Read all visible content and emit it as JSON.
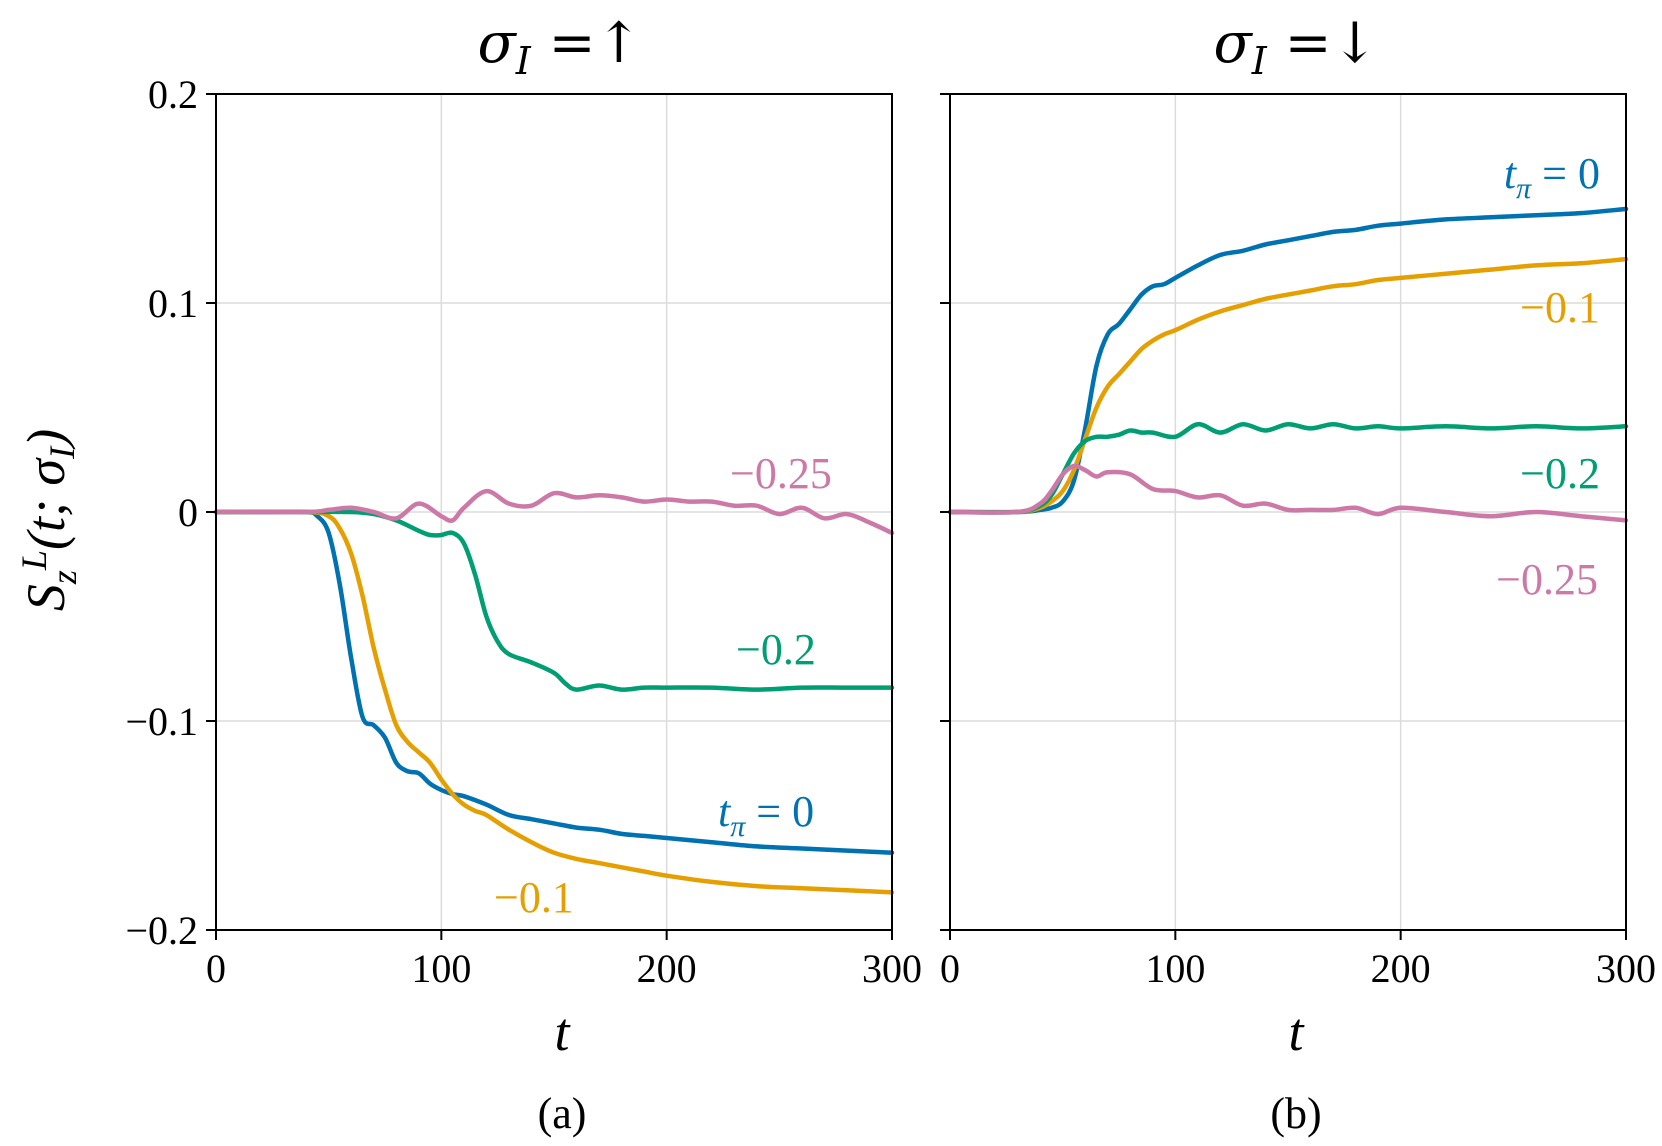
{
  "chart_data": [
    {
      "type": "line",
      "panel": "(a)",
      "title": "σ_I =↑",
      "xlabel": "t",
      "ylabel": "S_z^L(t; σ_I)",
      "xlim": [
        0,
        300
      ],
      "ylim": [
        -0.2,
        0.2
      ],
      "xticks": [
        "0",
        "100",
        "200",
        "300"
      ],
      "yticks": [
        "0.2",
        "0.1",
        "0",
        "−0.1",
        "−0.2"
      ],
      "grid": true,
      "series": [
        {
          "name": "t_π = 0",
          "label": "t",
          "label_sub": "π",
          "label_rest": " = 0",
          "color": "#0072b2",
          "x": [
            0,
            20,
            40,
            45,
            50,
            55,
            60,
            65,
            70,
            75,
            80,
            85,
            90,
            95,
            100,
            105,
            110,
            120,
            130,
            140,
            150,
            160,
            170,
            180,
            190,
            200,
            220,
            240,
            260,
            280,
            300
          ],
          "y": [
            0,
            0,
            0,
            -0.002,
            -0.01,
            -0.035,
            -0.07,
            -0.098,
            -0.102,
            -0.108,
            -0.12,
            -0.124,
            -0.125,
            -0.13,
            -0.133,
            -0.135,
            -0.136,
            -0.14,
            -0.145,
            -0.147,
            -0.149,
            -0.151,
            -0.152,
            -0.154,
            -0.155,
            -0.156,
            -0.158,
            -0.16,
            -0.161,
            -0.162,
            -0.163
          ]
        },
        {
          "name": "−0.1",
          "label": "−0.1",
          "color": "#e69f00",
          "x": [
            0,
            40,
            50,
            55,
            60,
            65,
            70,
            75,
            80,
            85,
            90,
            95,
            100,
            105,
            110,
            115,
            120,
            130,
            140,
            150,
            160,
            170,
            180,
            190,
            200,
            220,
            240,
            260,
            280,
            300
          ],
          "y": [
            0,
            0,
            -0.002,
            -0.008,
            -0.02,
            -0.04,
            -0.065,
            -0.085,
            -0.102,
            -0.11,
            -0.115,
            -0.12,
            -0.128,
            -0.135,
            -0.14,
            -0.143,
            -0.145,
            -0.152,
            -0.158,
            -0.163,
            -0.166,
            -0.168,
            -0.17,
            -0.172,
            -0.174,
            -0.177,
            -0.179,
            -0.18,
            -0.181,
            -0.182
          ]
        },
        {
          "name": "−0.2",
          "label": "−0.2",
          "color": "#009e73",
          "x": [
            0,
            40,
            60,
            70,
            80,
            90,
            95,
            100,
            105,
            110,
            115,
            120,
            125,
            130,
            140,
            150,
            155,
            160,
            170,
            180,
            190,
            200,
            220,
            240,
            260,
            280,
            300
          ],
          "y": [
            0,
            0,
            0,
            -0.001,
            -0.004,
            -0.009,
            -0.011,
            -0.011,
            -0.01,
            -0.015,
            -0.03,
            -0.05,
            -0.062,
            -0.068,
            -0.072,
            -0.077,
            -0.082,
            -0.085,
            -0.083,
            -0.085,
            -0.084,
            -0.084,
            -0.084,
            -0.085,
            -0.084,
            -0.084,
            -0.084
          ]
        },
        {
          "name": "−0.25",
          "label": "−0.25",
          "color": "#cc79a7",
          "x": [
            0,
            40,
            50,
            60,
            70,
            80,
            90,
            100,
            105,
            110,
            120,
            130,
            140,
            150,
            160,
            170,
            180,
            190,
            200,
            210,
            220,
            230,
            240,
            250,
            260,
            270,
            280,
            290,
            300
          ],
          "y": [
            0,
            0,
            0.001,
            0.002,
            0,
            -0.003,
            0.004,
            -0.002,
            -0.004,
            0.002,
            0.01,
            0.004,
            0.003,
            0.009,
            0.007,
            0.008,
            0.007,
            0.005,
            0.006,
            0.005,
            0.005,
            0.003,
            0.003,
            -0.001,
            0.002,
            -0.003,
            -0.001,
            -0.005,
            -0.01
          ]
        }
      ],
      "annotations": [
        "t_π = 0",
        "−0.1",
        "−0.2",
        "−0.25"
      ]
    },
    {
      "type": "line",
      "panel": "(b)",
      "title": "σ_I =↓",
      "xlabel": "t",
      "ylabel": "",
      "xlim": [
        0,
        300
      ],
      "ylim": [
        -0.2,
        0.2
      ],
      "xticks": [
        "0",
        "100",
        "200",
        "300"
      ],
      "yticks": [],
      "grid": true,
      "series": [
        {
          "name": "t_π = 0",
          "label": "t",
          "label_sub": "π",
          "label_rest": " = 0",
          "color": "#0072b2",
          "x": [
            0,
            30,
            40,
            45,
            50,
            55,
            60,
            65,
            70,
            75,
            80,
            85,
            90,
            95,
            100,
            110,
            120,
            130,
            140,
            150,
            160,
            170,
            180,
            190,
            200,
            220,
            240,
            260,
            280,
            300
          ],
          "y": [
            0,
            0,
            0.001,
            0.002,
            0.005,
            0.015,
            0.04,
            0.07,
            0.085,
            0.09,
            0.097,
            0.104,
            0.108,
            0.109,
            0.112,
            0.118,
            0.123,
            0.125,
            0.128,
            0.13,
            0.132,
            0.134,
            0.135,
            0.137,
            0.138,
            0.14,
            0.141,
            0.142,
            0.143,
            0.145
          ]
        },
        {
          "name": "−0.1",
          "label": "−0.1",
          "color": "#e69f00",
          "x": [
            0,
            30,
            40,
            45,
            50,
            55,
            60,
            65,
            70,
            75,
            80,
            85,
            90,
            95,
            100,
            110,
            120,
            130,
            140,
            150,
            160,
            170,
            180,
            190,
            200,
            220,
            240,
            260,
            280,
            300
          ],
          "y": [
            0,
            0,
            0.002,
            0.005,
            0.01,
            0.02,
            0.035,
            0.05,
            0.06,
            0.066,
            0.072,
            0.078,
            0.082,
            0.085,
            0.087,
            0.092,
            0.096,
            0.099,
            0.102,
            0.104,
            0.106,
            0.108,
            0.109,
            0.111,
            0.112,
            0.114,
            0.116,
            0.118,
            0.119,
            0.121
          ]
        },
        {
          "name": "−0.2",
          "label": "−0.2",
          "color": "#009e73",
          "x": [
            0,
            30,
            40,
            45,
            50,
            55,
            60,
            65,
            70,
            75,
            80,
            85,
            90,
            100,
            110,
            120,
            130,
            140,
            150,
            160,
            170,
            180,
            190,
            200,
            220,
            240,
            260,
            280,
            300
          ],
          "y": [
            0,
            0,
            0.003,
            0.008,
            0.018,
            0.028,
            0.034,
            0.036,
            0.036,
            0.037,
            0.039,
            0.038,
            0.038,
            0.036,
            0.042,
            0.038,
            0.042,
            0.039,
            0.042,
            0.04,
            0.042,
            0.04,
            0.041,
            0.04,
            0.041,
            0.04,
            0.041,
            0.04,
            0.041
          ]
        },
        {
          "name": "−0.25",
          "label": "−0.25",
          "color": "#cc79a7",
          "x": [
            0,
            30,
            40,
            45,
            50,
            55,
            60,
            65,
            70,
            80,
            90,
            100,
            110,
            120,
            130,
            140,
            150,
            160,
            170,
            180,
            190,
            200,
            220,
            240,
            260,
            280,
            300
          ],
          "y": [
            0,
            0,
            0.004,
            0.01,
            0.018,
            0.022,
            0.02,
            0.017,
            0.019,
            0.018,
            0.011,
            0.01,
            0.007,
            0.008,
            0.003,
            0.004,
            0.001,
            0.001,
            0.001,
            0.002,
            -0.001,
            0.002,
            0,
            -0.002,
            0,
            -0.002,
            -0.004
          ]
        }
      ],
      "annotations": [
        "t_π = 0",
        "−0.1",
        "−0.2",
        "−0.25"
      ]
    }
  ]
}
